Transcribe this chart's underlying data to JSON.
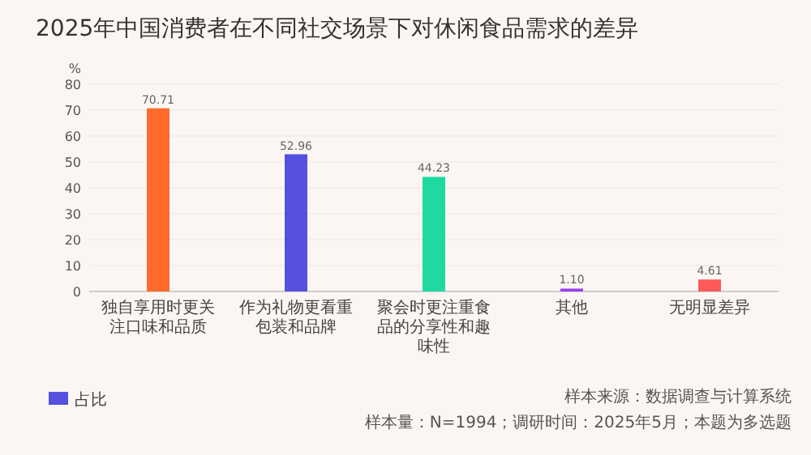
{
  "chart_data": {
    "type": "bar",
    "title": "2025年中国消费者在不同社交场景下对休闲食品需求的差异",
    "categories": [
      "独自享用时更关注口味和品质",
      "作为礼物更看重包装和品牌",
      "聚会时更注重食品的分享性和趣味性",
      "其他",
      "无明显差异"
    ],
    "series": [
      {
        "name": "占比",
        "color": "#5550e0",
        "colors": [
          "#ff6b2b",
          "#5550e0",
          "#1ed9a0",
          "#9b3cf0",
          "#ff5a5a"
        ],
        "values": [
          70.71,
          52.96,
          44.23,
          1.1,
          4.61
        ],
        "value_labels": [
          "70.71",
          "52.96",
          "44.23",
          "1.10",
          "4.61"
        ]
      }
    ],
    "ylabel": "%",
    "ylim": [
      0,
      80
    ],
    "yticks": [
      0,
      10,
      20,
      30,
      40,
      50,
      60,
      70,
      80
    ],
    "grid": "y",
    "legend": "bottom left",
    "annotations": [
      "样本来源：数据调查与计算系统",
      "样本量：N=1994；调研时间：2025年5月；本题为多选题"
    ]
  }
}
